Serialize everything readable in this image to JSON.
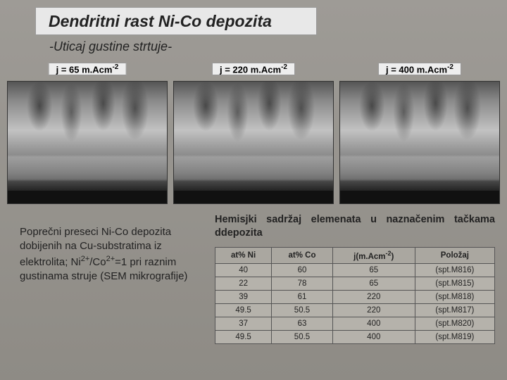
{
  "title": "Dendritni rast Ni-Co depozita",
  "subtitle": "-Uticaj gustine strtuje-",
  "sem": {
    "labels": [
      "j = 65 m.Acm",
      "j = 220 m.Acm",
      "j = 400 m.Acm"
    ],
    "exp": "-2"
  },
  "caption": {
    "pre": "Poprečni preseci Ni-Co depozita dobijenih na Cu-substratima iz elektrolita; Ni",
    "sup1": "2+",
    "mid": "/Co",
    "sup2": "2+",
    "post": "=1 pri raznim gustinama struje (SEM mikrografije)"
  },
  "chem_title": "Hemisjki sadržaj elemenata u naznačenim tačkama ddepozita",
  "table": {
    "headers": [
      "at% Ni",
      "at% Co",
      "j(m.Acm",
      "Položaj"
    ],
    "header_exp": "-2",
    "rows": [
      [
        "40",
        "60",
        "65",
        "(spt.M816)"
      ],
      [
        "22",
        "78",
        "65",
        "(spt.M815)"
      ],
      [
        "39",
        "61",
        "220",
        "(spt.M818)"
      ],
      [
        "49.5",
        "50.5",
        "220",
        "(spt.M817)"
      ],
      [
        "37",
        "63",
        "400",
        "(spt.M820)"
      ],
      [
        "49.5",
        "50.5",
        "400",
        "(spt.M819)"
      ]
    ]
  }
}
